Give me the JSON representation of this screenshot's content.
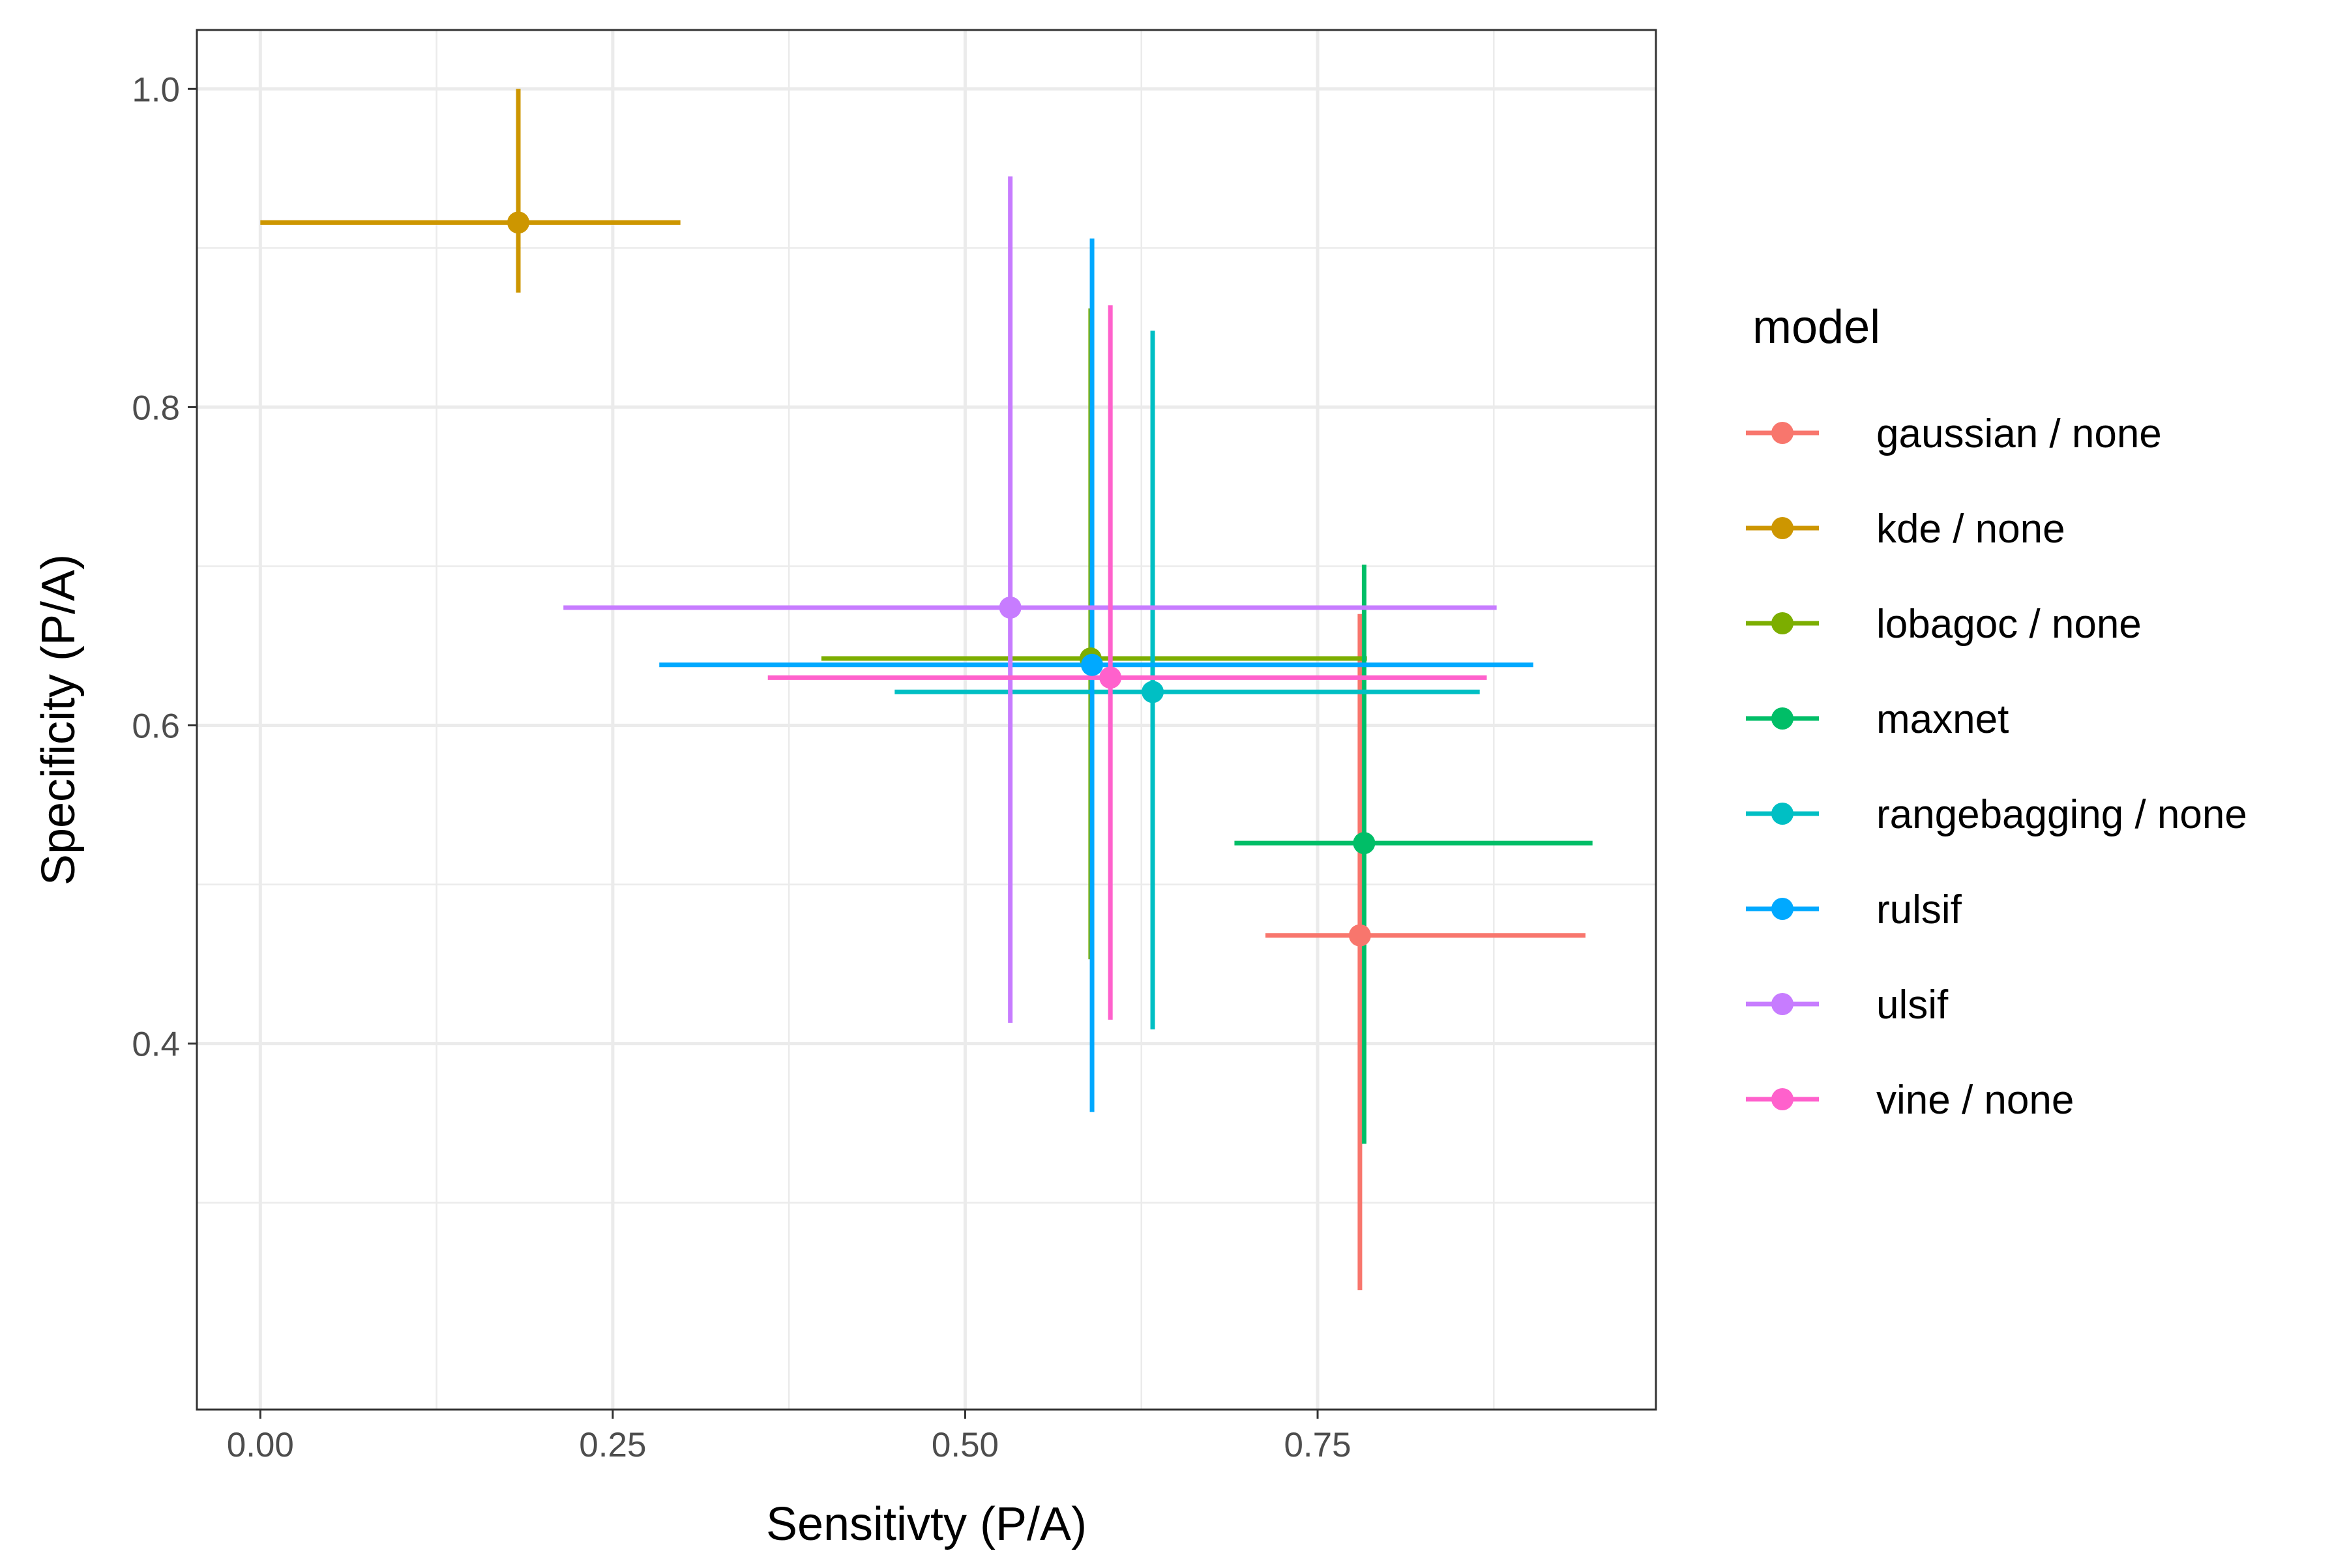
{
  "chart_data": {
    "type": "scatter",
    "xlabel": "Sensitivty (P/A)",
    "ylabel": "Specificity (P/A)",
    "xlim": [
      -0.045,
      0.99
    ],
    "ylim": [
      0.17,
      1.037
    ],
    "x_ticks": [
      0.0,
      0.25,
      0.5,
      0.75
    ],
    "x_tick_labels": [
      "0.00",
      "0.25",
      "0.50",
      "0.75"
    ],
    "x_minor": [
      0.125,
      0.375,
      0.625,
      0.875
    ],
    "y_ticks": [
      0.4,
      0.6,
      0.8,
      1.0
    ],
    "y_tick_labels": [
      "0.4",
      "0.6",
      "0.8",
      "1.0"
    ],
    "y_minor": [
      0.3,
      0.5,
      0.7,
      0.9
    ],
    "grid": true,
    "legend": {
      "title": "model",
      "position": "right"
    },
    "series": [
      {
        "name": "gaussian / none",
        "color": "#F8766D",
        "x": 0.78,
        "y": 0.468,
        "x_range": [
          0.713,
          0.94
        ],
        "y_range": [
          0.245,
          0.67
        ]
      },
      {
        "name": "kde / none",
        "color": "#CD9600",
        "x": 0.183,
        "y": 0.916,
        "x_range": [
          0.0,
          0.298
        ],
        "y_range": [
          0.872,
          1.0
        ]
      },
      {
        "name": "lobagoc / none",
        "color": "#7CAE00",
        "x": 0.589,
        "y": 0.642,
        "x_range": [
          0.398,
          0.785
        ],
        "y_range": [
          0.453,
          0.862
        ]
      },
      {
        "name": "maxnet",
        "color": "#00BE67",
        "x": 0.783,
        "y": 0.526,
        "x_range": [
          0.691,
          0.945
        ],
        "y_range": [
          0.337,
          0.701
        ]
      },
      {
        "name": "rangebagging / none",
        "color": "#00BFC4",
        "x": 0.633,
        "y": 0.621,
        "x_range": [
          0.45,
          0.865
        ],
        "y_range": [
          0.409,
          0.848
        ]
      },
      {
        "name": "rulsif",
        "color": "#00A9FF",
        "x": 0.59,
        "y": 0.638,
        "x_range": [
          0.283,
          0.903
        ],
        "y_range": [
          0.357,
          0.906
        ]
      },
      {
        "name": "ulsif",
        "color": "#C77CFF",
        "x": 0.532,
        "y": 0.674,
        "x_range": [
          0.215,
          0.877
        ],
        "y_range": [
          0.413,
          0.945
        ]
      },
      {
        "name": "vine / none",
        "color": "#FF61CC",
        "x": 0.603,
        "y": 0.63,
        "x_range": [
          0.36,
          0.87
        ],
        "y_range": [
          0.415,
          0.864
        ]
      }
    ]
  }
}
